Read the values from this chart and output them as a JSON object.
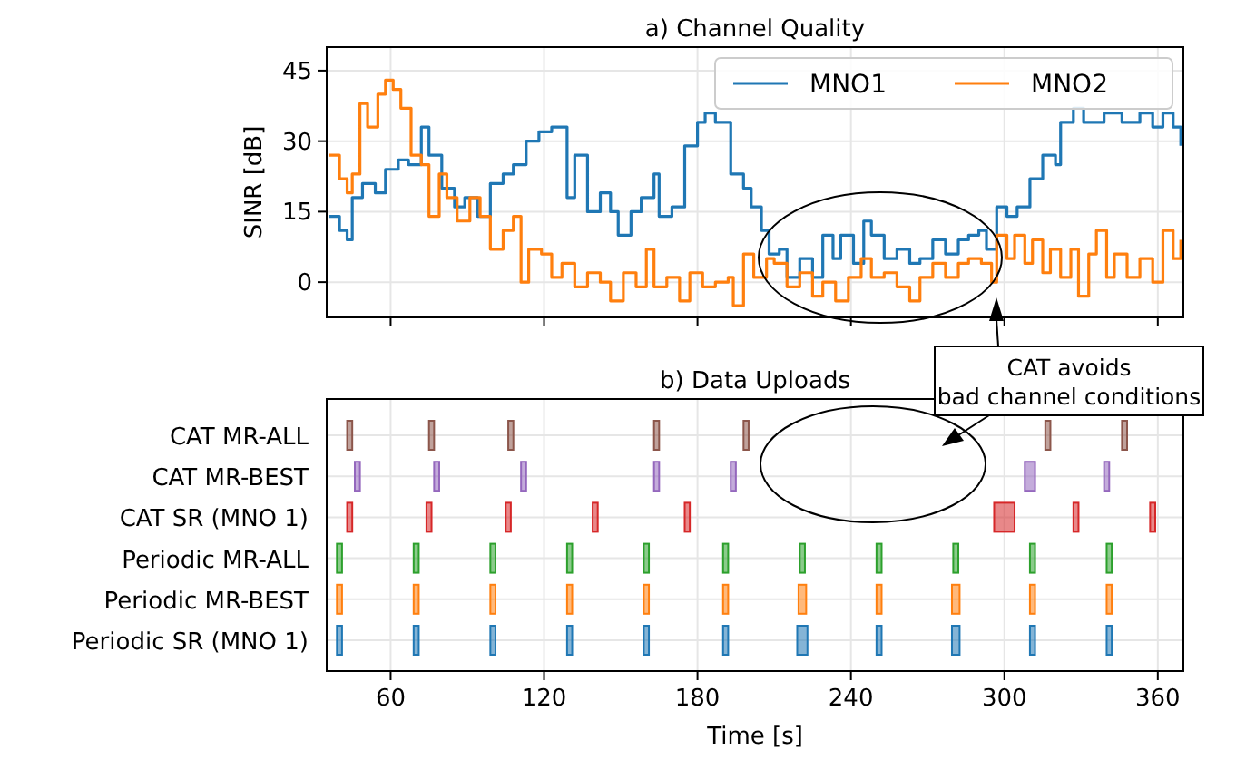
{
  "chart_data": [
    {
      "type": "step",
      "title": "a) Channel Quality",
      "ylabel": "SINR [dB]",
      "xlim": [
        35,
        370
      ],
      "ylim": [
        -7.5,
        50
      ],
      "xticks": [
        60,
        120,
        180,
        240,
        300,
        360
      ],
      "yticks": [
        0,
        15,
        30,
        45
      ],
      "tick_labels": "y",
      "grid": true,
      "legend": "top right",
      "series": [
        {
          "name": "MNO1",
          "color": "#1f77b4",
          "x": [
            36,
            40,
            43,
            45,
            49,
            54,
            58,
            63,
            67,
            72,
            75,
            80,
            85,
            89,
            94,
            99,
            104,
            108,
            113,
            118,
            123,
            126,
            129,
            132,
            137,
            142,
            146,
            149,
            154,
            158,
            163,
            165,
            170,
            175,
            180,
            183,
            187,
            190,
            193,
            198,
            201,
            205,
            208,
            212,
            215,
            220,
            225,
            229,
            233,
            236,
            241,
            245,
            248,
            253,
            258,
            263,
            267,
            272,
            277,
            282,
            286,
            290,
            293,
            297,
            301,
            305,
            310,
            315,
            320,
            322,
            327,
            331,
            339,
            346,
            353,
            358,
            362,
            366,
            369
          ],
          "values": [
            14,
            11,
            9,
            18,
            21,
            19,
            24,
            26,
            25,
            33,
            27,
            20,
            16,
            18,
            14,
            21,
            23,
            25,
            30,
            32,
            33,
            33,
            18,
            27,
            15,
            19,
            15,
            10,
            15,
            18,
            23,
            14,
            16,
            29,
            34,
            36,
            34,
            34,
            23,
            20,
            16,
            11,
            6,
            7,
            1,
            5,
            1,
            10,
            5,
            10,
            4,
            13,
            10,
            5,
            7,
            4,
            5,
            9,
            6,
            9,
            10,
            11,
            7,
            16,
            14,
            16,
            22,
            27,
            25,
            34,
            37,
            34,
            36,
            34,
            36,
            33,
            36,
            33,
            29
          ]
        },
        {
          "name": "MNO2",
          "color": "#ff7f0e",
          "x": [
            36,
            40,
            43,
            45,
            48,
            51,
            55,
            58,
            61,
            64,
            68,
            72,
            75,
            79,
            82,
            86,
            91,
            95,
            99,
            104,
            108,
            111,
            114,
            119,
            123,
            127,
            132,
            137,
            142,
            146,
            151,
            156,
            160,
            163,
            168,
            173,
            177,
            182,
            187,
            192,
            194,
            198,
            202,
            207,
            210,
            215,
            220,
            225,
            229,
            234,
            239,
            244,
            248,
            253,
            258,
            263,
            267,
            272,
            277,
            282,
            286,
            291,
            295,
            297,
            301,
            304,
            308,
            311,
            315,
            318,
            322,
            326,
            329,
            333,
            336,
            340,
            343,
            348,
            353,
            358,
            362,
            366,
            369
          ],
          "values": [
            27,
            22,
            19,
            23,
            38,
            33,
            40,
            43,
            41,
            37,
            27,
            25,
            14,
            23,
            18,
            13,
            18,
            14,
            7,
            11,
            14,
            0,
            7,
            6,
            1,
            4,
            -1,
            2,
            0,
            -4,
            2,
            -1,
            7,
            -1,
            1,
            -4,
            2,
            -1,
            0,
            1,
            -5,
            6,
            1,
            5,
            4,
            -1,
            2,
            -3,
            0,
            -4,
            1,
            5,
            1,
            2,
            -1,
            -4,
            1,
            4,
            1,
            4,
            5,
            4,
            0,
            10,
            5,
            10,
            4,
            9,
            2,
            7,
            1,
            7,
            -3,
            6,
            11,
            1,
            6,
            1,
            5,
            0,
            11,
            5,
            9
          ]
        }
      ]
    },
    {
      "type": "bar",
      "orientation": "horizontal",
      "title": "b) Data Uploads",
      "xlabel": "Time [s]",
      "xlim": [
        35,
        370
      ],
      "xticks": [
        60,
        120,
        180,
        240,
        300,
        360
      ],
      "grid": true,
      "annotations": [
        "CAT avoids bad channel conditions"
      ],
      "categories": [
        "CAT MR-ALL",
        "CAT MR-BEST",
        "CAT SR (MNO 1)",
        "Periodic MR-ALL",
        "Periodic MR-BEST",
        "Periodic SR (MNO 1)"
      ],
      "series": [
        {
          "colors": [
            "#8c564b",
            "#9467bd",
            "#d62728",
            "#2ca02c",
            "#ff7f0e",
            "#1f77b4"
          ],
          "base": [
            43,
            46,
            43,
            39,
            39,
            39
          ],
          "values": [
            2,
            2,
            2,
            2,
            2,
            2
          ]
        },
        {
          "colors": [
            "#8c564b",
            "#9467bd",
            "#d62728",
            "#2ca02c",
            "#ff7f0e",
            "#1f77b4"
          ],
          "base": [
            75,
            77,
            74,
            69,
            69,
            69
          ],
          "values": [
            2,
            2,
            2,
            2,
            2,
            2
          ]
        },
        {
          "colors": [
            "#8c564b",
            "#9467bd",
            "#d62728",
            "#2ca02c",
            "#ff7f0e",
            "#1f77b4"
          ],
          "base": [
            106,
            111,
            105,
            99,
            99,
            99
          ],
          "values": [
            2,
            2,
            2,
            2,
            2,
            2
          ]
        },
        {
          "colors": [
            "#8c564b",
            "#9467bd",
            "#d62728",
            "#2ca02c",
            "#ff7f0e",
            "#1f77b4"
          ],
          "base": [
            163,
            163,
            139,
            129,
            129,
            129
          ],
          "values": [
            2,
            2,
            2,
            2,
            2,
            2
          ]
        },
        {
          "colors": [
            "#8c564b",
            "#9467bd",
            "#d62728",
            "#2ca02c",
            "#ff7f0e",
            "#1f77b4"
          ],
          "base": [
            198,
            193,
            175,
            159,
            159,
            159
          ],
          "values": [
            2,
            2,
            2,
            2,
            2,
            2
          ]
        },
        {
          "colors": [
            "#8c564b",
            "#9467bd",
            "#d62728",
            "#2ca02c",
            "#ff7f0e",
            "#1f77b4"
          ],
          "base": [
            316,
            308,
            296,
            190,
            190,
            190
          ],
          "values": [
            2,
            4,
            8,
            2,
            2,
            2
          ]
        },
        {
          "colors": [
            "#8c564b",
            "#9467bd",
            "#d62728",
            "#2ca02c",
            "#ff7f0e",
            "#1f77b4"
          ],
          "base": [
            346,
            339,
            327,
            220,
            219.5,
            219
          ],
          "values": [
            2,
            2,
            2,
            2,
            3,
            4
          ]
        },
        {
          "colors": [
            null,
            null,
            "#d62728",
            "#2ca02c",
            "#ff7f0e",
            "#1f77b4"
          ],
          "base": [
            null,
            null,
            357,
            250,
            250,
            250
          ],
          "values": [
            null,
            null,
            2,
            2,
            2,
            2
          ]
        },
        {
          "colors": [
            null,
            null,
            null,
            "#2ca02c",
            "#ff7f0e",
            "#1f77b4"
          ],
          "base": [
            null,
            null,
            null,
            280,
            279.5,
            279.5
          ],
          "values": [
            null,
            null,
            null,
            2,
            3,
            3
          ]
        },
        {
          "colors": [
            null,
            null,
            null,
            "#2ca02c",
            "#ff7f0e",
            "#1f77b4"
          ],
          "base": [
            null,
            null,
            null,
            310,
            310,
            310
          ],
          "values": [
            null,
            null,
            null,
            2,
            2,
            2
          ]
        },
        {
          "colors": [
            null,
            null,
            null,
            "#2ca02c",
            "#ff7f0e",
            "#1f77b4"
          ],
          "base": [
            null,
            null,
            null,
            340,
            340,
            340
          ],
          "values": [
            null,
            null,
            null,
            2,
            2,
            2
          ]
        }
      ]
    }
  ]
}
